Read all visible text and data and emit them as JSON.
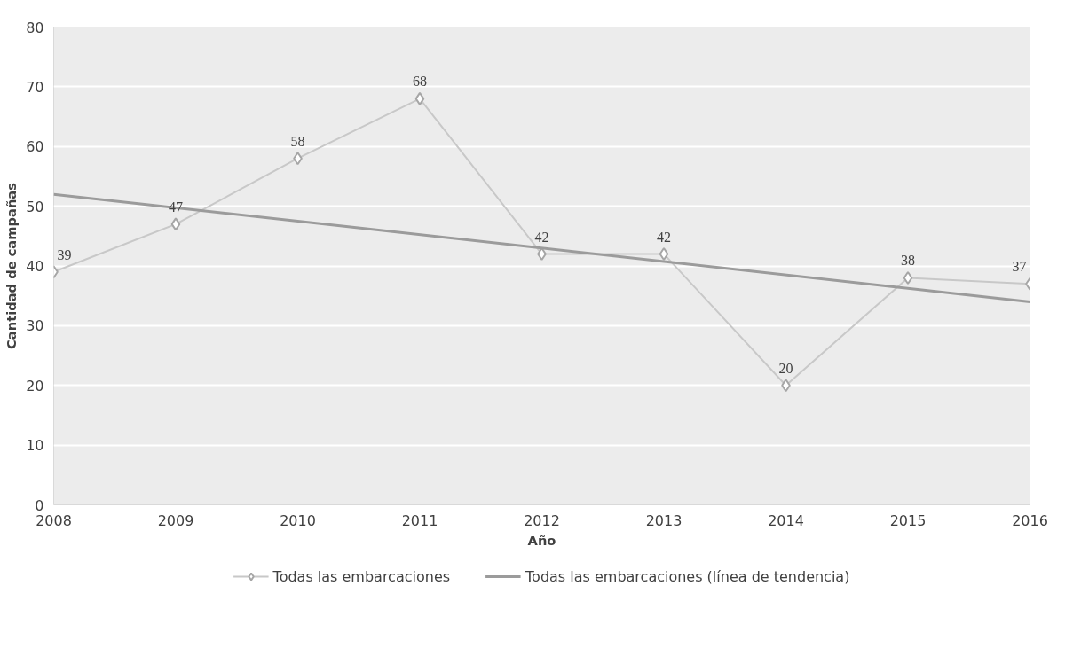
{
  "chart_data": {
    "type": "line",
    "xlabel": "Año",
    "ylabel": "Cantidad de campañas",
    "x": [
      2008,
      2009,
      2010,
      2011,
      2012,
      2013,
      2014,
      2015,
      2016
    ],
    "series": [
      {
        "name": "Todas las embarcaciones",
        "color": "#c8c8c8",
        "values": [
          39,
          47,
          58,
          68,
          42,
          42,
          20,
          38,
          37
        ],
        "marker": "diamond",
        "data_labels": true
      },
      {
        "name": "Todas las embarcaciones (línea de tendencia)",
        "type": "line",
        "color": "#9b9b9b",
        "x": [
          2008,
          2016
        ],
        "values": [
          52,
          34
        ]
      }
    ],
    "xlim": [
      2008,
      2016
    ],
    "xticks": [
      2008,
      2009,
      2010,
      2011,
      2012,
      2013,
      2014,
      2015,
      2016
    ],
    "ylim": [
      0,
      80
    ],
    "yticks": [
      0,
      10,
      20,
      30,
      40,
      50,
      60,
      70,
      80
    ],
    "grid": "y",
    "legend": "bottom",
    "line_style": "solid"
  }
}
